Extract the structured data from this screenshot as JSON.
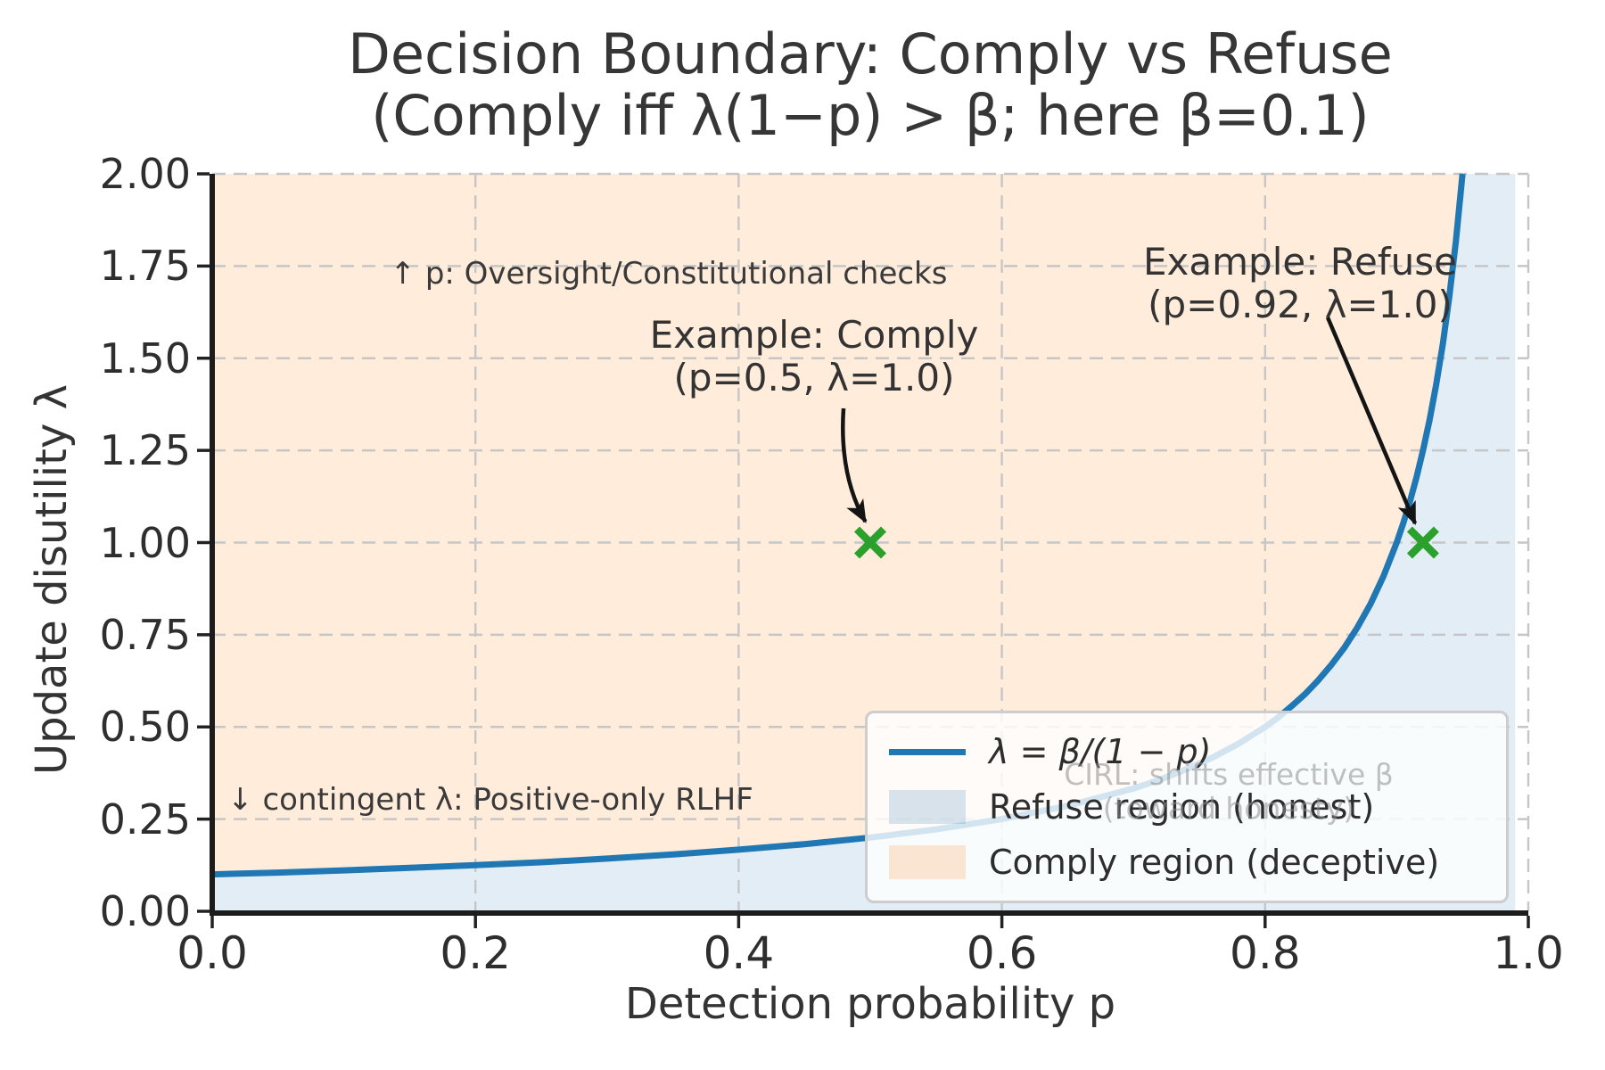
{
  "figure": {
    "background": "#ffffff",
    "title_line1": "Decision Boundary: Comply vs Refuse",
    "title_line2": "(Comply iff λ(1−p) > β; here β=0.1)"
  },
  "axes": {
    "xlabel": "Detection probability p",
    "ylabel": "Update disutility λ",
    "x_ticks": [
      0.0,
      0.2,
      0.4,
      0.6,
      0.8,
      1.0
    ],
    "x_tick_labels": [
      "0.0",
      "0.2",
      "0.4",
      "0.6",
      "0.8",
      "1.0"
    ],
    "y_ticks": [
      0.0,
      0.25,
      0.5,
      0.75,
      1.0,
      1.25,
      1.5,
      1.75,
      2.0
    ],
    "y_tick_labels": [
      "0.00",
      "0.25",
      "0.50",
      "0.75",
      "1.00",
      "1.25",
      "1.50",
      "1.75",
      "2.00"
    ]
  },
  "chart_data": {
    "type": "line",
    "title": "Decision Boundary: Comply vs Refuse (Comply iff λ(1−p) > β; here β=0.1)",
    "xlabel": "Detection probability p",
    "ylabel": "Update disutility λ",
    "xlim": [
      0.0,
      1.0
    ],
    "ylim": [
      0.0,
      2.0
    ],
    "grid": {
      "visible": true,
      "style": "dashed",
      "color": "#c6c6c6"
    },
    "beta": 0.1,
    "fill_x_max": 0.99,
    "boundary_curve": {
      "label": "λ = β/(1 − p)",
      "formula": "lambda = beta / (1 - p)",
      "color": "#1f77b4",
      "x": [
        0,
        0.05,
        0.1,
        0.15,
        0.2,
        0.25,
        0.3,
        0.35,
        0.4,
        0.45,
        0.5,
        0.55,
        0.6,
        0.65,
        0.7,
        0.72,
        0.74,
        0.76,
        0.78,
        0.8,
        0.81,
        0.82,
        0.83,
        0.84,
        0.85,
        0.86,
        0.87,
        0.88,
        0.89,
        0.9,
        0.905,
        0.91,
        0.915,
        0.92,
        0.925,
        0.93,
        0.935,
        0.94,
        0.945,
        0.95
      ],
      "y": [
        0.1,
        0.105,
        0.111,
        0.118,
        0.125,
        0.133,
        0.143,
        0.154,
        0.167,
        0.182,
        0.2,
        0.222,
        0.25,
        0.286,
        0.333,
        0.357,
        0.385,
        0.417,
        0.455,
        0.5,
        0.526,
        0.556,
        0.588,
        0.625,
        0.667,
        0.714,
        0.769,
        0.833,
        0.909,
        1.0,
        1.053,
        1.111,
        1.176,
        1.25,
        1.333,
        1.429,
        1.538,
        1.667,
        1.818,
        2.0
      ]
    },
    "regions": [
      {
        "label": "Refuse region (honest)",
        "condition": "λ(1−p) ≤ β",
        "position": "below curve",
        "fill": "rgba(31,119,180,0.13)"
      },
      {
        "label": "Comply region (deceptive)",
        "condition": "λ(1−p) > β",
        "position": "above curve",
        "fill": "rgba(255,127,14,0.15)"
      }
    ],
    "markers": [
      {
        "x": 0.5,
        "y": 1.0,
        "marker": "x",
        "color": "#2ca02c",
        "label": "Example: Comply",
        "detail": "(p=0.5, λ=1.0)"
      },
      {
        "x": 0.92,
        "y": 1.0,
        "marker": "x",
        "color": "#2ca02c",
        "label": "Example: Refuse",
        "detail": "(p=0.92, λ=1.0)"
      }
    ],
    "legend_position": "lower right"
  },
  "annotations": {
    "comply_example_line1": "Example: Comply",
    "comply_example_line2": "(p=0.5, λ=1.0)",
    "refuse_example_line1": "Example: Refuse",
    "refuse_example_line2": "(p=0.92, λ=1.0)",
    "oversight_note": "↑ p: Oversight/Constitutional checks",
    "rlhf_note": "↓ contingent λ: Positive-only RLHF",
    "cirl_note_line1": "CIRL: shifts effective β",
    "cirl_note_line2": "(toward honesty)"
  },
  "legend": {
    "items": [
      {
        "type": "line",
        "color": "#1f77b4",
        "label": "λ = β/(1 − p)"
      },
      {
        "type": "patch",
        "color": "rgba(31,119,180,0.18)",
        "label": "Refuse region (honest)"
      },
      {
        "type": "patch",
        "color": "rgba(255,127,14,0.18)",
        "label": "Comply region (deceptive)"
      }
    ]
  }
}
